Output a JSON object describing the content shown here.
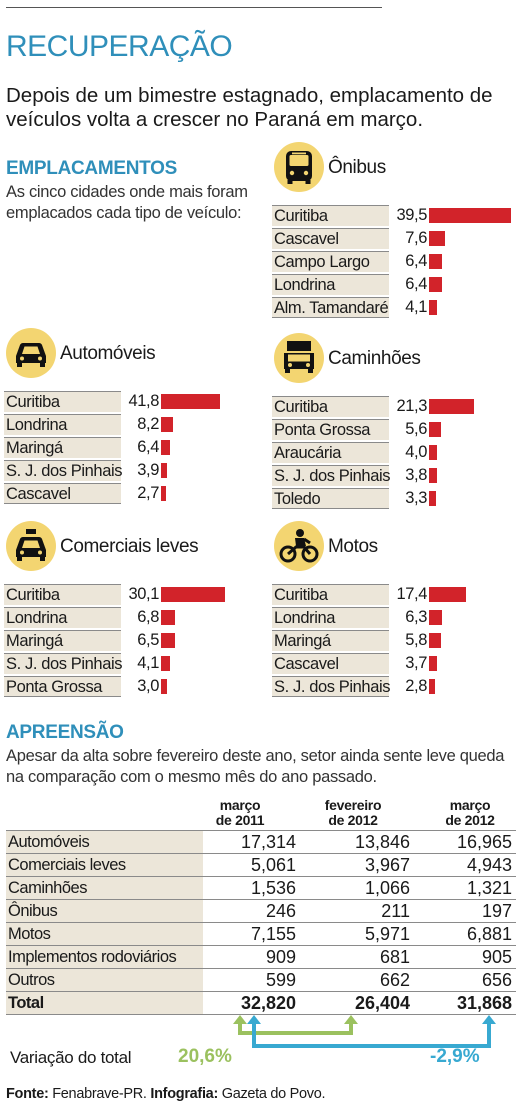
{
  "title": "RECUPERAÇÃO",
  "subtitle": "Depois de um bimestre estagnado, emplacamento de veículos volta a crescer no Paraná em março.",
  "emplacamentos": {
    "heading": "EMPLACAMENTOS",
    "description": "As cinco cidades onde mais foram emplacados cada tipo de veículo:"
  },
  "apreensao": {
    "heading": "APREENSÃO",
    "description": "Apesar da alta sobre fevereiro deste ano, setor ainda sente leve queda na comparação com o mesmo mês do ano passado."
  },
  "colors": {
    "accent": "#2f8fba",
    "bar": "#d2232a",
    "icon_bg": "#f3d571",
    "row_bg": "#ece6d9",
    "positive": "#9bc15f",
    "negative": "#38a9d1"
  },
  "chart_data": [
    {
      "type": "bar",
      "title": "Ônibus",
      "icon": "bus-icon",
      "categories": [
        "Curitiba",
        "Cascavel",
        "Campo Largo",
        "Londrina",
        "Alm. Tamandaré"
      ],
      "values": [
        39.5,
        7.6,
        6.4,
        6.4,
        4.1
      ],
      "labels": [
        "39,5",
        "7,6",
        "6,4",
        "6,4",
        "4,1"
      ]
    },
    {
      "type": "bar",
      "title": "Automóveis",
      "icon": "car-icon",
      "categories": [
        "Curitiba",
        "Londrina",
        "Maringá",
        "S. J. dos Pinhais",
        "Cascavel"
      ],
      "values": [
        41.8,
        8.2,
        6.4,
        3.9,
        2.7
      ],
      "labels": [
        "41,8",
        "8,2",
        "6,4",
        "3,9",
        "2,7"
      ]
    },
    {
      "type": "bar",
      "title": "Caminhões",
      "icon": "truck-icon",
      "categories": [
        "Curitiba",
        "Ponta Grossa",
        "Araucária",
        "S. J. dos Pinhais",
        "Toledo"
      ],
      "values": [
        21.3,
        5.6,
        4.0,
        3.8,
        3.3
      ],
      "labels": [
        "21,3",
        "5,6",
        "4,0",
        "3,8",
        "3,3"
      ]
    },
    {
      "type": "bar",
      "title": "Comerciais leves",
      "icon": "taxi-icon",
      "categories": [
        "Curitiba",
        "Londrina",
        "Maringá",
        "S. J. dos Pinhais",
        "Ponta Grossa"
      ],
      "values": [
        30.1,
        6.8,
        6.5,
        4.1,
        3.0
      ],
      "labels": [
        "30,1",
        "6,8",
        "6,5",
        "4,1",
        "3,0"
      ]
    },
    {
      "type": "bar",
      "title": "Motos",
      "icon": "motorcycle-icon",
      "categories": [
        "Curitiba",
        "Londrina",
        "Maringá",
        "Cascavel",
        "S. J. dos Pinhais"
      ],
      "values": [
        17.4,
        6.3,
        5.8,
        3.7,
        2.8
      ],
      "labels": [
        "17,4",
        "6,3",
        "5,8",
        "3,7",
        "2,8"
      ]
    },
    {
      "type": "table",
      "columns": [
        "março de 2011",
        "fevereiro de 2012",
        "março de 2012"
      ],
      "rows": [
        {
          "label": "Automóveis",
          "values": [
            "17,314",
            "13,846",
            "16,965"
          ]
        },
        {
          "label": "Comerciais leves",
          "values": [
            "5,061",
            "3,967",
            "4,943"
          ]
        },
        {
          "label": "Caminhões",
          "values": [
            "1,536",
            "1,066",
            "1,321"
          ]
        },
        {
          "label": "Ônibus",
          "values": [
            "246",
            "211",
            "197"
          ]
        },
        {
          "label": "Motos",
          "values": [
            "7,155",
            "5,971",
            "6,881"
          ]
        },
        {
          "label": "Implementos rodoviários",
          "values": [
            "909",
            "681",
            "905"
          ]
        },
        {
          "label": "Outros",
          "values": [
            "599",
            "662",
            "656"
          ]
        },
        {
          "label": "Total",
          "values": [
            "32,820",
            "26,404",
            "31,868"
          ]
        }
      ],
      "variation_label": "Variação do total",
      "variation_feb_to_mar_2012": "20,6%",
      "variation_mar_2011_to_mar_2012": "-2,9%"
    }
  ],
  "source": {
    "source_label": "Fonte:",
    "source_value": "Fenabrave-PR.",
    "infographic_label": "Infografia:",
    "infographic_value": "Gazeta do Povo."
  }
}
